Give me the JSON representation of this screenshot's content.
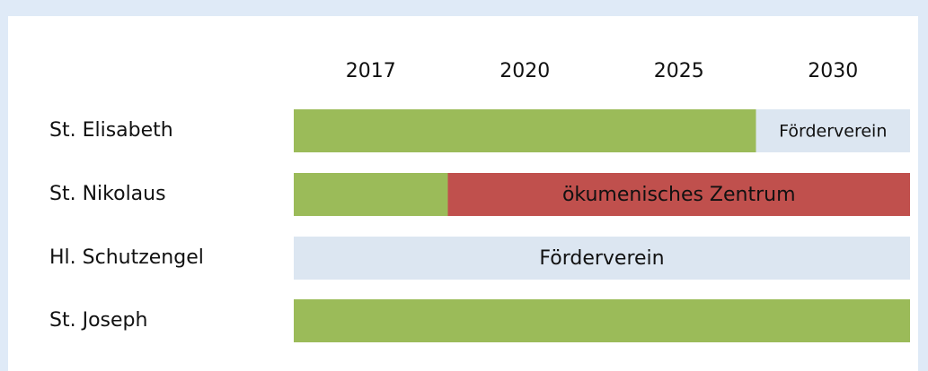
{
  "columns": [
    "2017",
    "2020",
    "2025",
    "2030"
  ],
  "rows": [
    {
      "label": "St. Elisabeth",
      "segments": [
        {
          "span": 3,
          "color": "#9bbb59"
        },
        {
          "span": 1,
          "color": "#dce6f1",
          "label": "Förderverein"
        }
      ]
    },
    {
      "label": "St. Nikolaus",
      "segments": [
        {
          "span": 1,
          "color": "#9bbb59"
        },
        {
          "span": 3,
          "color": "#c0504d",
          "label": "ökumenisches Zentrum"
        }
      ]
    },
    {
      "label": "Hl. Schutzengel",
      "segments": [
        {
          "span": 4,
          "color": "#dce6f1",
          "label": "Förderverein"
        }
      ]
    },
    {
      "label": "St. Joseph",
      "segments": [
        {
          "span": 4,
          "color": "#9bbb59"
        }
      ]
    }
  ]
}
